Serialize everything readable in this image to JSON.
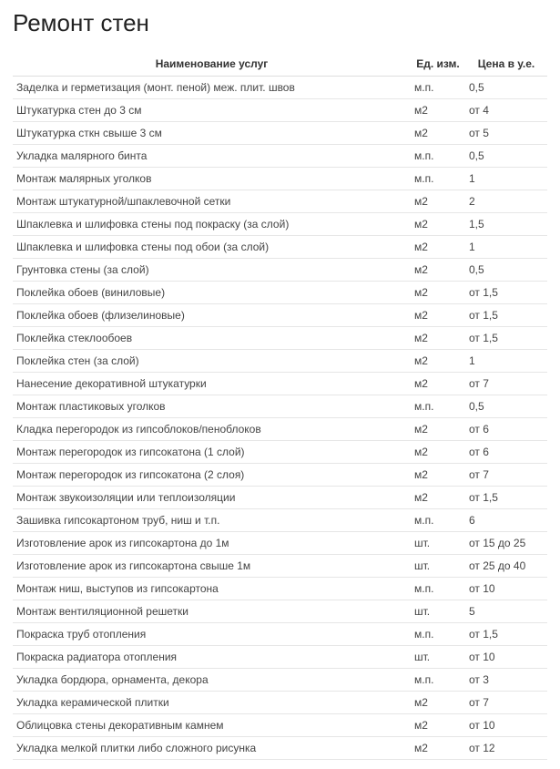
{
  "title": "Ремонт стен",
  "table": {
    "columns": [
      "Наименование услуг",
      "Ед. изм.",
      "Цена в у.е."
    ],
    "rows": [
      [
        "Заделка и герметизация (монт. пеной) меж. плит. швов",
        "м.п.",
        "0,5"
      ],
      [
        "Штукатурка стен до 3 см",
        "м2",
        "от 4"
      ],
      [
        "Штукатурка сткн свыше 3 см",
        "м2",
        "от 5"
      ],
      [
        "Укладка малярного бинта",
        "м.п.",
        "0,5"
      ],
      [
        "Монтаж малярных уголков",
        "м.п.",
        "1"
      ],
      [
        "Монтаж штукатурной/шпаклевочной сетки",
        "м2",
        "2"
      ],
      [
        "Шпаклевка и шлифовка стены под покраску (за слой)",
        "м2",
        "1,5"
      ],
      [
        "Шпаклевка и шлифовка стены под обои (за слой)",
        "м2",
        "1"
      ],
      [
        "Грунтовка стены (за слой)",
        "м2",
        "0,5"
      ],
      [
        "Поклейка обоев (виниловые)",
        "м2",
        "от 1,5"
      ],
      [
        "Поклейка обоев (флизелиновые)",
        "м2",
        "от 1,5"
      ],
      [
        "Поклейка стеклообоев",
        "м2",
        "от 1,5"
      ],
      [
        "Поклейка стен (за слой)",
        "м2",
        "1"
      ],
      [
        "Нанесение декоративной штукатурки",
        "м2",
        "от 7"
      ],
      [
        "Монтаж пластиковых уголков",
        "м.п.",
        "0,5"
      ],
      [
        "Кладка перегородок из гипсоблоков/пеноблоков",
        "м2",
        "от 6"
      ],
      [
        "Монтаж перегородок из гипсокатона (1 слой)",
        "м2",
        "от 6"
      ],
      [
        "Монтаж перегородок из гипсокатона (2 слоя)",
        "м2",
        "от 7"
      ],
      [
        "Монтаж звукоизоляции или теплоизоляции",
        "м2",
        "от 1,5"
      ],
      [
        "Зашивка гипсокартоном труб, ниш и т.п.",
        "м.п.",
        "6"
      ],
      [
        "Изготовление арок из гипсокартона до 1м",
        "шт.",
        "от 15 до 25"
      ],
      [
        "Изготовление арок из гипсокартона свыше 1м",
        "шт.",
        "от 25 до 40"
      ],
      [
        "Монтаж ниш, выступов из гипсокартона",
        "м.п.",
        "от 10"
      ],
      [
        "Монтаж вентиляционной решетки",
        "шт.",
        "5"
      ],
      [
        "Покраска труб отопления",
        "м.п.",
        "от 1,5"
      ],
      [
        "Покраска радиатора отопления",
        "шт.",
        "от 10"
      ],
      [
        "Укладка бордюра, орнамента, декора",
        "м.п.",
        "от 3"
      ],
      [
        "Укладка керамической плитки",
        "м2",
        "от 7"
      ],
      [
        "Облицовка стены декоративным камнем",
        "м2",
        "от 10"
      ],
      [
        "Укладка мелкой плитки либо сложного рисунка",
        "м2",
        "от 12"
      ]
    ]
  },
  "styling": {
    "title_fontsize": 26,
    "title_color": "#222222",
    "header_fontsize": 12,
    "cell_fontsize": 12,
    "text_color": "#444444",
    "border_color": "#e6e6e6",
    "background_color": "#ffffff",
    "col_widths": [
      "auto",
      "60px",
      "90px"
    ]
  }
}
